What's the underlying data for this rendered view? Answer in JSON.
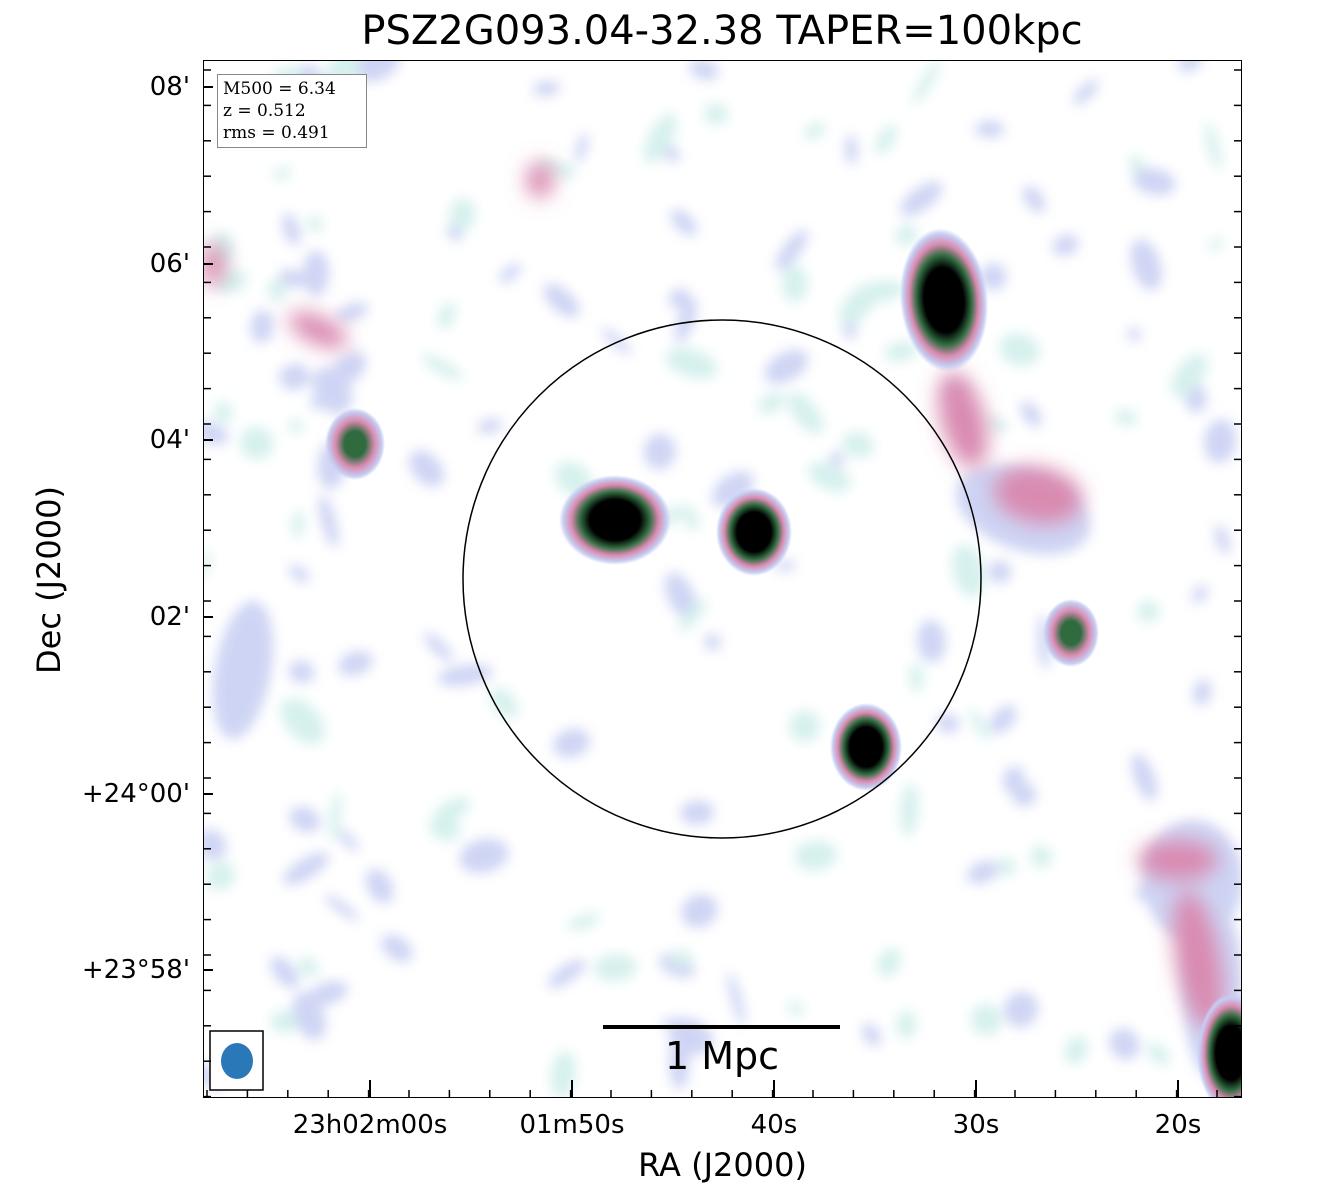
{
  "title": "PSZ2G093.04-32.38 TAPER=100kpc",
  "axes": {
    "xlabel": "RA (J2000)",
    "ylabel": "Dec (J2000)",
    "x_ticks": [
      "23h02m00s",
      "01m50s",
      "40s",
      "30s",
      "20s"
    ],
    "y_ticks": [
      "08'",
      "06'",
      "04'",
      "02'",
      "+24°00'",
      "+23°58'"
    ]
  },
  "info": {
    "m500": "M500 = 6.34",
    "z": "z = 0.512",
    "rms": "rms = 0.491"
  },
  "scale_bar": {
    "label": "1 Mpc"
  },
  "beam": {
    "color": "#2a78b8"
  },
  "colors": {
    "faint": "#c6cdf2",
    "pink": "#d98ab0",
    "green": "#2f6b3f",
    "core": "#000000"
  }
}
